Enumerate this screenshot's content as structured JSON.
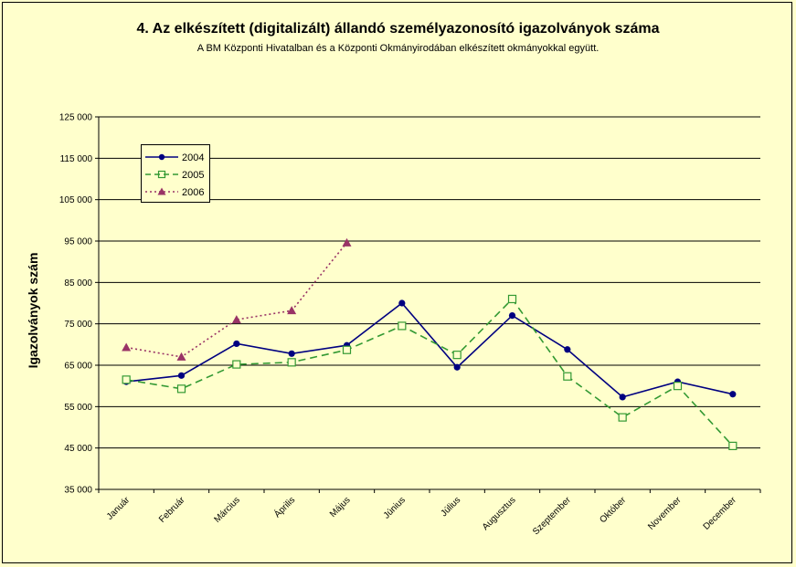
{
  "chart_data": {
    "type": "line",
    "title": "4. Az elkészített (digitalizált) állandó személyazonosító igazolványok száma",
    "subtitle": "A BM Központi Hivatalban és a Központi Okmányirodában elkészített okmányokkal együtt.",
    "xlabel": "",
    "ylabel": "Igazolványok szám",
    "ylim": [
      35000,
      125000
    ],
    "ytick_step": 10000,
    "ytick_labels": [
      "35 000",
      "45 000",
      "55 000",
      "65 000",
      "75 000",
      "85 000",
      "95 000",
      "105 000",
      "115 000",
      "125 000"
    ],
    "categories": [
      "Január",
      "Február",
      "Március",
      "Április",
      "Május",
      "Június",
      "Július",
      "Augusztus",
      "Szeptember",
      "Október",
      "November",
      "December"
    ],
    "grid": "horizontal",
    "legend_position": "top-left",
    "series": [
      {
        "name": "2004",
        "color": "#000080",
        "marker": "circle",
        "line": "solid",
        "values": [
          61000,
          62500,
          70200,
          67800,
          69800,
          80000,
          64500,
          77000,
          68800,
          57300,
          61000,
          58000
        ]
      },
      {
        "name": "2005",
        "color": "#339933",
        "marker": "square-open",
        "line": "dashed",
        "values": [
          61500,
          59300,
          65200,
          65700,
          68700,
          74500,
          67500,
          81000,
          62300,
          52400,
          60000,
          45500
        ]
      },
      {
        "name": "2006",
        "color": "#993366",
        "marker": "triangle",
        "line": "dotted",
        "values": [
          69300,
          67000,
          76000,
          78200,
          94600,
          null,
          null,
          null,
          null,
          null,
          null,
          null
        ]
      }
    ]
  }
}
